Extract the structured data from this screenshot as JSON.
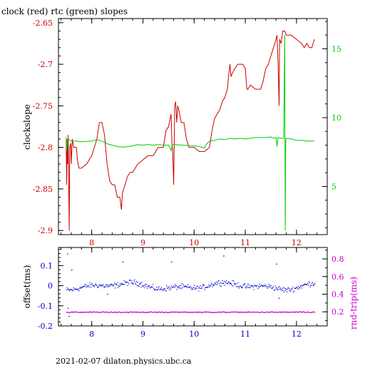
{
  "colors": {
    "background": "#ffffff",
    "axis_black": "#000000",
    "red": "#cc0000",
    "green": "#00cc00",
    "blue": "#0000cc",
    "magenta": "#cc00cc"
  },
  "chart_data": [
    {
      "type": "line",
      "title": "clock (red) rtc (green) slopes",
      "ylabel": "clockslope",
      "xlim": [
        7.35,
        12.6
      ],
      "ylim_left": [
        -2.905,
        -2.645
      ],
      "ylim_right": [
        1.5,
        17.2
      ],
      "x_ticks": [
        8,
        9,
        10,
        11,
        12
      ],
      "y_ticks_left": [
        -2.9,
        -2.85,
        -2.8,
        -2.75,
        -2.7,
        -2.65
      ],
      "y_tick_labels_left": [
        "-2.9",
        "-2.85",
        "-2.8",
        "-2.75",
        "-2.7",
        "-2.65"
      ],
      "y_ticks_right": [
        5,
        10,
        15
      ],
      "y_tick_labels_right": [
        "5",
        "10",
        "15"
      ],
      "grid": false,
      "series": [
        {
          "name": "clock",
          "axis": "left",
          "color": "#cc0000",
          "points": [
            [
              7.5,
              -2.79
            ],
            [
              7.51,
              -2.845
            ],
            [
              7.52,
              -2.79
            ],
            [
              7.53,
              -2.82
            ],
            [
              7.54,
              -2.785
            ],
            [
              7.56,
              -2.9
            ],
            [
              7.57,
              -2.8
            ],
            [
              7.59,
              -2.795
            ],
            [
              7.6,
              -2.82
            ],
            [
              7.62,
              -2.79
            ],
            [
              7.65,
              -2.8
            ],
            [
              7.7,
              -2.8
            ],
            [
              7.72,
              -2.815
            ],
            [
              7.75,
              -2.825
            ],
            [
              7.8,
              -2.825
            ],
            [
              7.9,
              -2.82
            ],
            [
              8.0,
              -2.81
            ],
            [
              8.05,
              -2.8
            ],
            [
              8.1,
              -2.79
            ],
            [
              8.15,
              -2.77
            ],
            [
              8.2,
              -2.77
            ],
            [
              8.25,
              -2.785
            ],
            [
              8.3,
              -2.82
            ],
            [
              8.35,
              -2.84
            ],
            [
              8.4,
              -2.845
            ],
            [
              8.45,
              -2.845
            ],
            [
              8.5,
              -2.86
            ],
            [
              8.55,
              -2.86
            ],
            [
              8.58,
              -2.875
            ],
            [
              8.6,
              -2.855
            ],
            [
              8.65,
              -2.845
            ],
            [
              8.7,
              -2.835
            ],
            [
              8.75,
              -2.83
            ],
            [
              8.8,
              -2.83
            ],
            [
              8.9,
              -2.82
            ],
            [
              9.0,
              -2.815
            ],
            [
              9.1,
              -2.81
            ],
            [
              9.2,
              -2.81
            ],
            [
              9.3,
              -2.8
            ],
            [
              9.4,
              -2.8
            ],
            [
              9.45,
              -2.78
            ],
            [
              9.5,
              -2.775
            ],
            [
              9.55,
              -2.76
            ],
            [
              9.57,
              -2.8
            ],
            [
              9.58,
              -2.8
            ],
            [
              9.6,
              -2.845
            ],
            [
              9.61,
              -2.8
            ],
            [
              9.62,
              -2.75
            ],
            [
              9.64,
              -2.745
            ],
            [
              9.66,
              -2.77
            ],
            [
              9.68,
              -2.75
            ],
            [
              9.7,
              -2.755
            ],
            [
              9.75,
              -2.77
            ],
            [
              9.8,
              -2.77
            ],
            [
              9.85,
              -2.79
            ],
            [
              9.9,
              -2.8
            ],
            [
              9.95,
              -2.8
            ],
            [
              10.0,
              -2.8
            ],
            [
              10.1,
              -2.805
            ],
            [
              10.2,
              -2.805
            ],
            [
              10.3,
              -2.8
            ],
            [
              10.35,
              -2.78
            ],
            [
              10.4,
              -2.765
            ],
            [
              10.45,
              -2.76
            ],
            [
              10.5,
              -2.755
            ],
            [
              10.55,
              -2.745
            ],
            [
              10.6,
              -2.74
            ],
            [
              10.65,
              -2.73
            ],
            [
              10.68,
              -2.71
            ],
            [
              10.7,
              -2.7
            ],
            [
              10.72,
              -2.715
            ],
            [
              10.75,
              -2.71
            ],
            [
              10.8,
              -2.705
            ],
            [
              10.85,
              -2.7
            ],
            [
              10.95,
              -2.7
            ],
            [
              11.0,
              -2.705
            ],
            [
              11.03,
              -2.73
            ],
            [
              11.05,
              -2.73
            ],
            [
              11.1,
              -2.725
            ],
            [
              11.2,
              -2.73
            ],
            [
              11.3,
              -2.73
            ],
            [
              11.35,
              -2.72
            ],
            [
              11.4,
              -2.705
            ],
            [
              11.45,
              -2.7
            ],
            [
              11.5,
              -2.69
            ],
            [
              11.55,
              -2.68
            ],
            [
              11.6,
              -2.67
            ],
            [
              11.62,
              -2.665
            ],
            [
              11.64,
              -2.7
            ],
            [
              11.66,
              -2.75
            ],
            [
              11.67,
              -2.67
            ],
            [
              11.7,
              -2.675
            ],
            [
              11.73,
              -2.66
            ],
            [
              11.77,
              -2.66
            ],
            [
              11.8,
              -2.665
            ],
            [
              11.9,
              -2.665
            ],
            [
              12.0,
              -2.67
            ],
            [
              12.1,
              -2.675
            ],
            [
              12.15,
              -2.68
            ],
            [
              12.2,
              -2.675
            ],
            [
              12.25,
              -2.68
            ],
            [
              12.3,
              -2.68
            ],
            [
              12.35,
              -2.67
            ]
          ]
        },
        {
          "name": "rtc",
          "axis": "right",
          "color": "#00cc00",
          "points": [
            [
              7.5,
              8.6
            ],
            [
              7.51,
              7.6
            ],
            [
              7.53,
              8.3
            ],
            [
              7.55,
              8.4
            ],
            [
              7.6,
              8.3
            ],
            [
              7.7,
              8.3
            ],
            [
              7.8,
              8.25
            ],
            [
              8.0,
              8.3
            ],
            [
              8.1,
              8.4
            ],
            [
              8.2,
              8.3
            ],
            [
              8.3,
              8.1
            ],
            [
              8.4,
              8.0
            ],
            [
              8.5,
              7.9
            ],
            [
              8.6,
              7.85
            ],
            [
              8.7,
              7.9
            ],
            [
              8.8,
              7.95
            ],
            [
              8.9,
              8.05
            ],
            [
              9.0,
              8.0
            ],
            [
              9.1,
              8.05
            ],
            [
              9.2,
              8.0
            ],
            [
              9.3,
              8.05
            ],
            [
              9.4,
              8.0
            ],
            [
              9.5,
              8.0
            ],
            [
              9.55,
              7.6
            ],
            [
              9.57,
              8.0
            ],
            [
              9.6,
              8.05
            ],
            [
              9.8,
              8.0
            ],
            [
              10.0,
              7.95
            ],
            [
              10.1,
              7.9
            ],
            [
              10.2,
              7.8
            ],
            [
              10.25,
              8.1
            ],
            [
              10.3,
              8.3
            ],
            [
              10.4,
              8.35
            ],
            [
              10.5,
              8.45
            ],
            [
              10.6,
              8.4
            ],
            [
              10.7,
              8.5
            ],
            [
              10.8,
              8.45
            ],
            [
              10.9,
              8.5
            ],
            [
              11.0,
              8.45
            ],
            [
              11.2,
              8.55
            ],
            [
              11.4,
              8.55
            ],
            [
              11.5,
              8.6
            ],
            [
              11.55,
              8.5
            ],
            [
              11.6,
              8.55
            ],
            [
              11.62,
              7.9
            ],
            [
              11.64,
              8.55
            ],
            [
              11.7,
              8.5
            ],
            [
              11.75,
              8.5
            ],
            [
              11.77,
              16.0
            ],
            [
              11.78,
              1.8
            ],
            [
              11.79,
              8.4
            ],
            [
              11.8,
              8.5
            ],
            [
              11.9,
              8.45
            ],
            [
              12.0,
              8.35
            ],
            [
              12.1,
              8.35
            ],
            [
              12.2,
              8.3
            ],
            [
              12.3,
              8.3
            ],
            [
              12.35,
              8.3
            ]
          ]
        }
      ]
    },
    {
      "type": "scatter",
      "title": "",
      "xlabel": "2021-02-07  dilaton.physics.ubc.ca",
      "ylabel_left": "offset(ms)",
      "ylabel_right": "rnd-trip(ms)",
      "xlim": [
        7.35,
        12.6
      ],
      "ylim_left": [
        -0.2,
        0.19
      ],
      "ylim_right": [
        0.04,
        0.93
      ],
      "x_ticks": [
        8,
        9,
        10,
        11,
        12
      ],
      "y_ticks_left": [
        -0.2,
        -0.1,
        0,
        0.1
      ],
      "y_tick_labels_left": [
        "-0.2",
        "-0.1",
        "0",
        "0.1"
      ],
      "y_ticks_right": [
        0.2,
        0.4,
        0.6,
        0.8
      ],
      "y_tick_labels_right": [
        "0.2",
        "0.4",
        "0.6",
        "0.8"
      ],
      "grid": false,
      "series": [
        {
          "name": "offset",
          "axis": "left",
          "color": "#0000cc",
          "x_range": [
            7.5,
            12.35
          ],
          "typical_center": 0.0,
          "typical_spread": 0.02,
          "outliers": [
            [
              7.52,
              0.16
            ],
            [
              7.53,
              -0.11
            ],
            [
              7.55,
              -0.15
            ],
            [
              8.6,
              0.12
            ],
            [
              9.55,
              0.12
            ],
            [
              10.57,
              0.15
            ],
            [
              11.6,
              0.11
            ],
            [
              11.65,
              -0.06
            ],
            [
              7.6,
              0.08
            ],
            [
              8.3,
              -0.04
            ]
          ]
        },
        {
          "name": "rnd-trip",
          "axis": "right",
          "color": "#cc00cc",
          "x_range": [
            7.5,
            12.35
          ],
          "typical_center": 0.2,
          "typical_spread": 0.01
        }
      ]
    }
  ]
}
